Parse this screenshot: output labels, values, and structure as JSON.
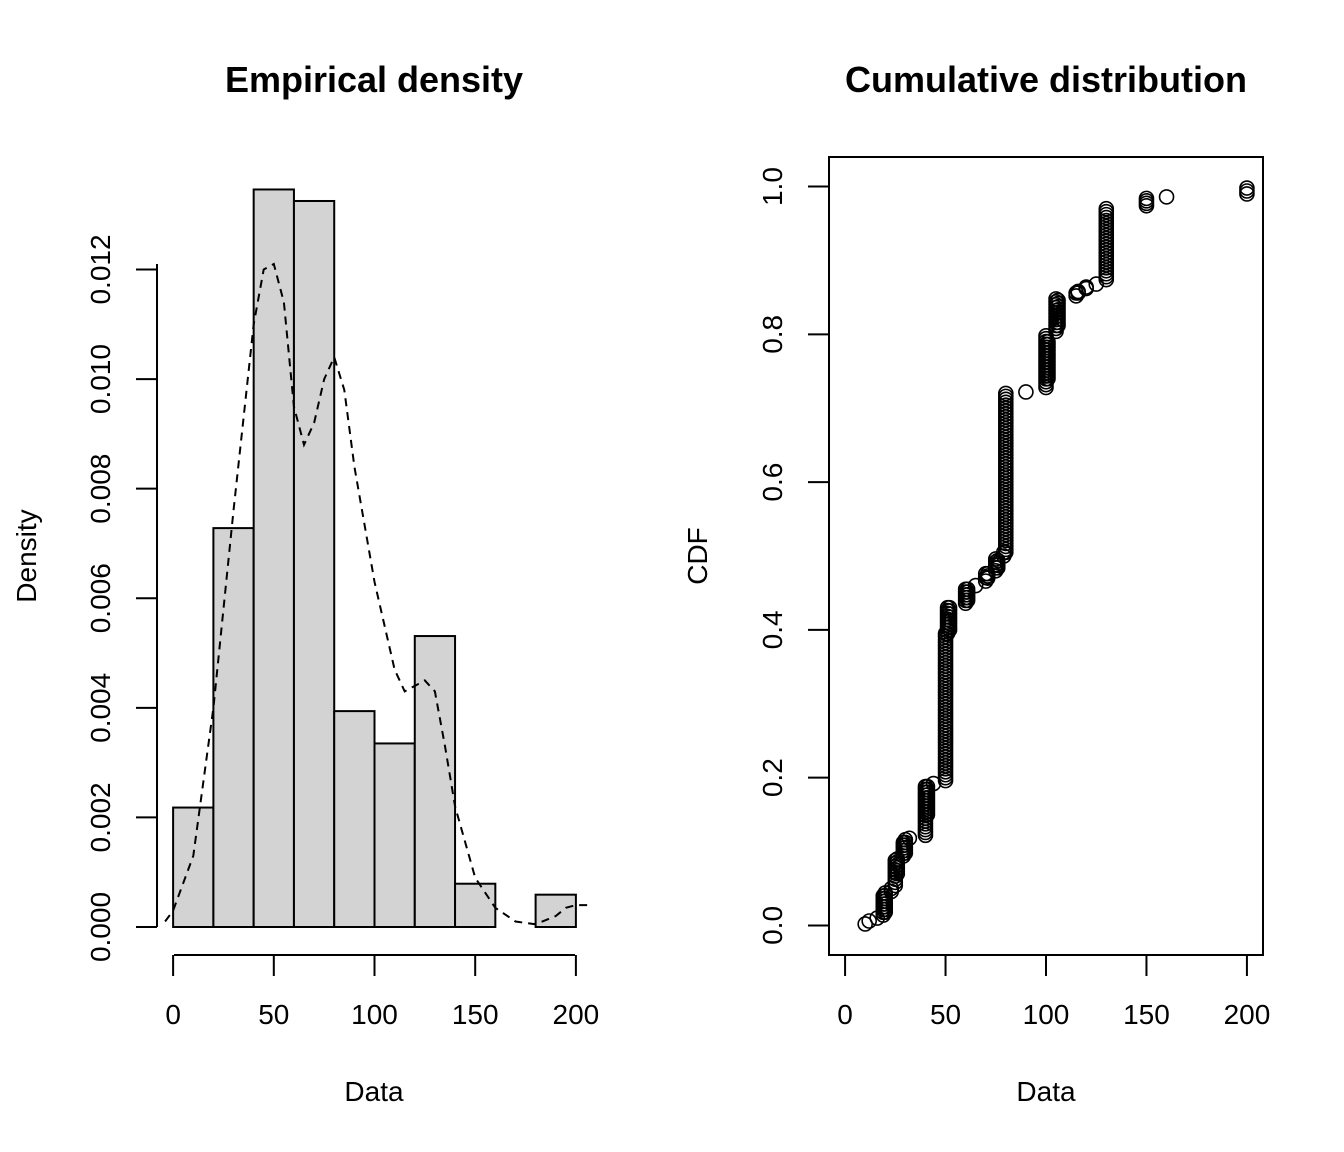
{
  "chart_data": [
    {
      "type": "bar",
      "title": "Empirical density",
      "xlabel": "Data",
      "ylabel": "Density",
      "bin_edges": [
        0,
        20,
        40,
        60,
        80,
        100,
        120,
        140,
        160,
        180,
        200
      ],
      "values": [
        0.00218,
        0.00728,
        0.01346,
        0.01325,
        0.00394,
        0.00335,
        0.00531,
        0.00079,
        0,
        0.00059
      ],
      "xlim": [
        -8,
        208
      ],
      "ylim": [
        0,
        0.0121
      ],
      "x_ticks": [
        0,
        50,
        100,
        150,
        200
      ],
      "y_ticks": [
        0.0,
        0.002,
        0.004,
        0.006,
        0.008,
        0.01,
        0.012
      ],
      "y_tick_labels": [
        "0.000",
        "0.002",
        "0.004",
        "0.006",
        "0.008",
        "0.010",
        "0.012"
      ],
      "overlay": {
        "type": "line",
        "style": "dashed",
        "x": [
          -4,
          0,
          10,
          20,
          30,
          40,
          45,
          50,
          55,
          60,
          65,
          70,
          75,
          80,
          85,
          90,
          100,
          110,
          115,
          120,
          125,
          130,
          135,
          140,
          150,
          160,
          170,
          180,
          190,
          195,
          200,
          207
        ],
        "y": [
          0.0001,
          0.0003,
          0.0013,
          0.004,
          0.0076,
          0.011,
          0.012,
          0.0121,
          0.0114,
          0.0095,
          0.0088,
          0.0092,
          0.01,
          0.0104,
          0.0098,
          0.0084,
          0.0063,
          0.0047,
          0.0043,
          0.0044,
          0.0045,
          0.0043,
          0.0033,
          0.0022,
          0.0009,
          0.00035,
          0.0001,
          5e-05,
          0.0002,
          0.00035,
          0.0004,
          0.0004
        ]
      }
    },
    {
      "type": "scatter",
      "title": "Cumulative distribution",
      "xlabel": "Data",
      "ylabel": "CDF",
      "xlim": [
        -8,
        208
      ],
      "ylim": [
        -0.04,
        1.04
      ],
      "x_ticks": [
        0,
        50,
        100,
        150,
        200
      ],
      "y_ticks": [
        0.0,
        0.2,
        0.4,
        0.6,
        0.8,
        1.0
      ],
      "y_tick_labels": [
        "0.0",
        "0.2",
        "0.4",
        "0.6",
        "0.8",
        "1.0"
      ],
      "groups": [
        {
          "x": 10,
          "y_from": 0.002,
          "y_to": 0.002
        },
        {
          "x": 12,
          "y_from": 0.006,
          "y_to": 0.006
        },
        {
          "x": 16,
          "y_from": 0.01,
          "y_to": 0.01
        },
        {
          "x": 19,
          "y_from": 0.014,
          "y_to": 0.04
        },
        {
          "x": 20,
          "y_from": 0.018,
          "y_to": 0.044
        },
        {
          "x": 23,
          "y_from": 0.046,
          "y_to": 0.05
        },
        {
          "x": 25,
          "y_from": 0.054,
          "y_to": 0.088
        },
        {
          "x": 26,
          "y_from": 0.07,
          "y_to": 0.09
        },
        {
          "x": 29,
          "y_from": 0.094,
          "y_to": 0.112
        },
        {
          "x": 30,
          "y_from": 0.098,
          "y_to": 0.116
        },
        {
          "x": 32,
          "y_from": 0.118,
          "y_to": 0.118
        },
        {
          "x": 40,
          "y_from": 0.122,
          "y_to": 0.188
        },
        {
          "x": 41,
          "y_from": 0.15,
          "y_to": 0.188
        },
        {
          "x": 44,
          "y_from": 0.192,
          "y_to": 0.192
        },
        {
          "x": 50,
          "y_from": 0.196,
          "y_to": 0.395
        },
        {
          "x": 51,
          "y_from": 0.395,
          "y_to": 0.43
        },
        {
          "x": 52,
          "y_from": 0.4,
          "y_to": 0.43
        },
        {
          "x": 60,
          "y_from": 0.436,
          "y_to": 0.455
        },
        {
          "x": 61,
          "y_from": 0.44,
          "y_to": 0.455
        },
        {
          "x": 65,
          "y_from": 0.46,
          "y_to": 0.46
        },
        {
          "x": 70,
          "y_from": 0.466,
          "y_to": 0.476
        },
        {
          "x": 71,
          "y_from": 0.47,
          "y_to": 0.476
        },
        {
          "x": 75,
          "y_from": 0.48,
          "y_to": 0.496
        },
        {
          "x": 76,
          "y_from": 0.484,
          "y_to": 0.494
        },
        {
          "x": 79,
          "y_from": 0.5,
          "y_to": 0.505
        },
        {
          "x": 80,
          "y_from": 0.505,
          "y_to": 0.72
        },
        {
          "x": 90,
          "y_from": 0.722,
          "y_to": 0.722
        },
        {
          "x": 100,
          "y_from": 0.728,
          "y_to": 0.798
        },
        {
          "x": 101,
          "y_from": 0.74,
          "y_to": 0.79
        },
        {
          "x": 105,
          "y_from": 0.804,
          "y_to": 0.848
        },
        {
          "x": 106,
          "y_from": 0.812,
          "y_to": 0.846
        },
        {
          "x": 115,
          "y_from": 0.852,
          "y_to": 0.856
        },
        {
          "x": 116,
          "y_from": 0.856,
          "y_to": 0.858
        },
        {
          "x": 120,
          "y_from": 0.862,
          "y_to": 0.864
        },
        {
          "x": 125,
          "y_from": 0.868,
          "y_to": 0.868
        },
        {
          "x": 130,
          "y_from": 0.874,
          "y_to": 0.97
        },
        {
          "x": 150,
          "y_from": 0.974,
          "y_to": 0.984
        },
        {
          "x": 160,
          "y_from": 0.986,
          "y_to": 0.986
        },
        {
          "x": 200,
          "y_from": 0.99,
          "y_to": 0.998
        }
      ]
    }
  ]
}
